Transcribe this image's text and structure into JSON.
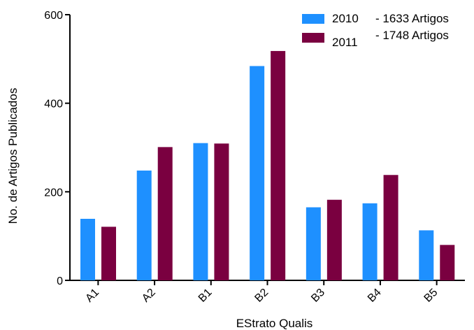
{
  "chart_data": {
    "type": "bar",
    "categories": [
      "A1",
      "A2",
      "B1",
      "B2",
      "B3",
      "B4",
      "B5"
    ],
    "series": [
      {
        "name": "2010",
        "values": [
          139,
          248,
          310,
          484,
          165,
          174,
          113
        ],
        "color": "#1e90ff"
      },
      {
        "name": "2011",
        "values": [
          121,
          301,
          309,
          518,
          182,
          238,
          80
        ],
        "color": "#7a0040"
      }
    ],
    "legend_notes": [
      "- 1633 Artigos",
      "- 1748 Artigos"
    ],
    "title": "",
    "xlabel": "EStrato Qualis",
    "ylabel": "No. de Artigos Publicados",
    "ylim": [
      0,
      600
    ],
    "yticks": [
      0,
      200,
      400,
      600
    ],
    "grid": false,
    "legend_position": "top-right"
  }
}
